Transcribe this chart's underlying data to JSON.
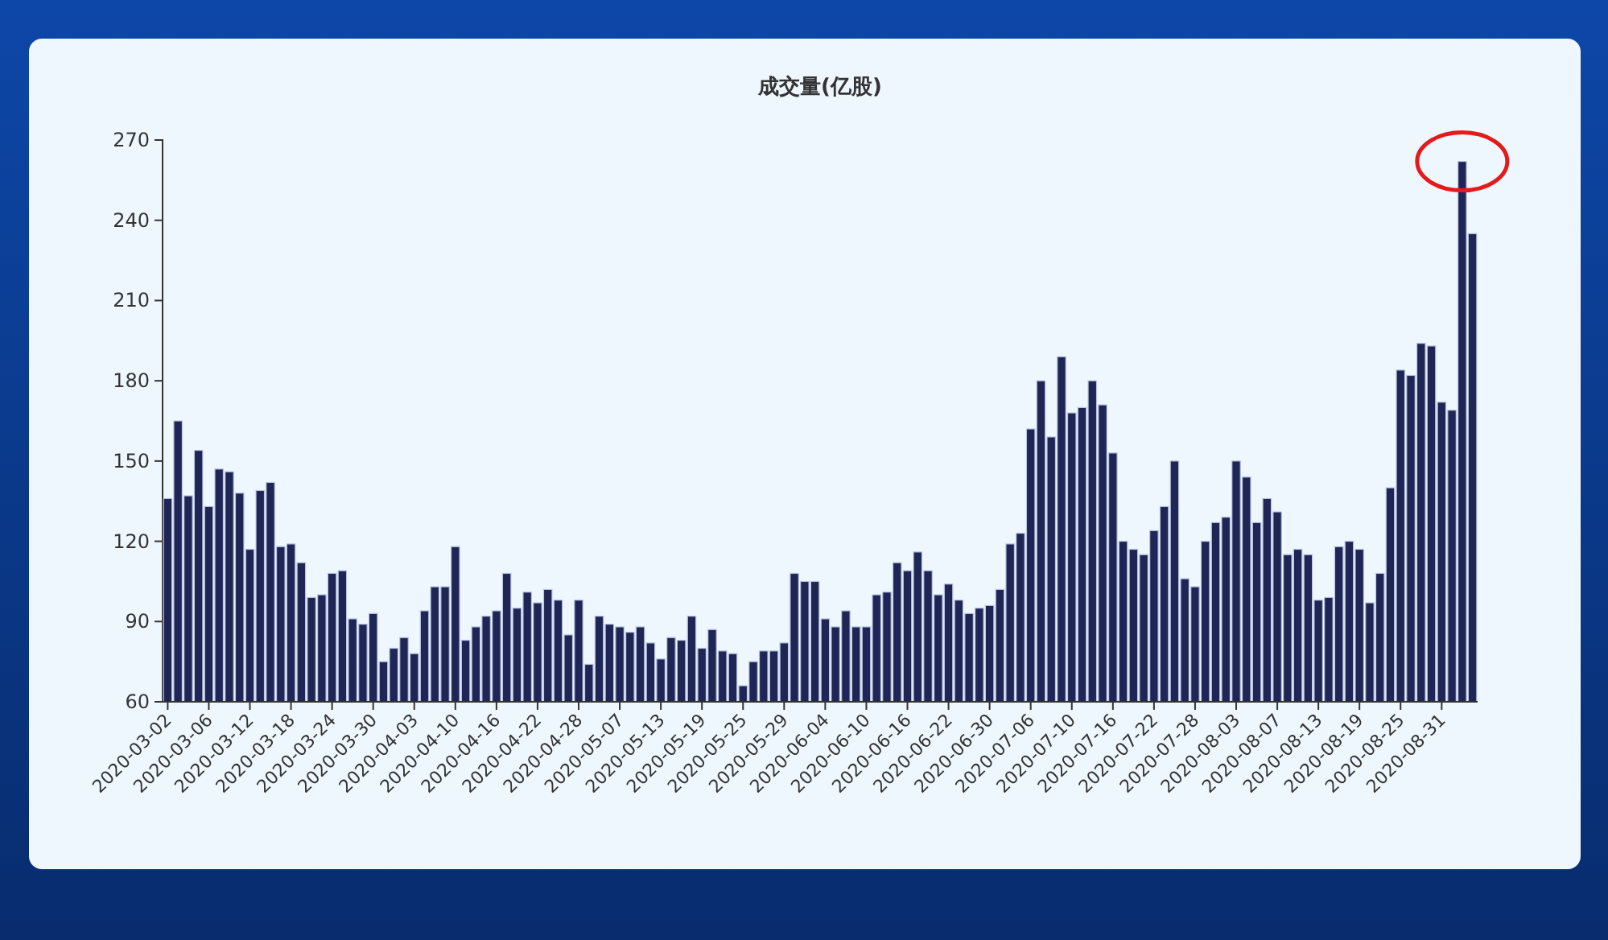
{
  "chart_data": {
    "type": "bar",
    "title": "成交量(亿股)",
    "categories": [
      "2020-03-02",
      null,
      null,
      null,
      "2020-03-06",
      null,
      null,
      null,
      "2020-03-12",
      null,
      null,
      null,
      "2020-03-18",
      null,
      null,
      null,
      "2020-03-24",
      null,
      null,
      null,
      "2020-03-30",
      null,
      null,
      null,
      "2020-04-03",
      null,
      null,
      null,
      "2020-04-10",
      null,
      null,
      null,
      "2020-04-16",
      null,
      null,
      null,
      "2020-04-22",
      null,
      null,
      null,
      "2020-04-28",
      null,
      null,
      null,
      "2020-05-07",
      null,
      null,
      null,
      "2020-05-13",
      null,
      null,
      null,
      "2020-05-19",
      null,
      null,
      null,
      "2020-05-25",
      null,
      null,
      null,
      "2020-05-29",
      null,
      null,
      null,
      "2020-06-04",
      null,
      null,
      null,
      "2020-06-10",
      null,
      null,
      null,
      "2020-06-16",
      null,
      null,
      null,
      "2020-06-22",
      null,
      null,
      null,
      "2020-06-30",
      null,
      null,
      null,
      "2020-07-06",
      null,
      null,
      null,
      "2020-07-10",
      null,
      null,
      null,
      "2020-07-16",
      null,
      null,
      null,
      "2020-07-22",
      null,
      null,
      null,
      "2020-07-28",
      null,
      null,
      null,
      "2020-08-03",
      null,
      null,
      null,
      "2020-08-07",
      null,
      null,
      null,
      "2020-08-13",
      null,
      null,
      null,
      "2020-08-19",
      null,
      null,
      null,
      "2020-08-25",
      null,
      null,
      null,
      "2020-08-31",
      null,
      null,
      null
    ],
    "values": [
      136,
      165,
      137,
      154,
      133,
      147,
      146,
      138,
      117,
      139,
      142,
      118,
      119,
      112,
      99,
      100,
      108,
      109,
      91,
      89,
      93,
      75,
      80,
      84,
      78,
      94,
      103,
      103,
      118,
      83,
      88,
      92,
      94,
      108,
      95,
      101,
      97,
      102,
      98,
      85,
      98,
      74,
      92,
      89,
      88,
      86,
      88,
      82,
      76,
      84,
      83,
      92,
      80,
      87,
      79,
      78,
      66,
      75,
      79,
      79,
      82,
      108,
      105,
      105,
      91,
      88,
      94,
      88,
      88,
      100,
      101,
      112,
      109,
      116,
      109,
      100,
      104,
      98,
      93,
      95,
      96,
      102,
      119,
      123,
      162,
      180,
      159,
      189,
      168,
      170,
      180,
      171,
      153,
      120,
      117,
      115,
      124,
      133,
      150,
      106,
      103,
      120,
      127,
      129,
      150,
      144,
      127,
      136,
      131,
      115,
      117,
      115,
      98,
      99,
      118,
      120,
      117,
      97,
      108,
      140,
      184,
      182,
      194,
      193,
      172,
      169,
      262,
      235
    ],
    "color": "#1f2656",
    "ylim": [
      60,
      270
    ],
    "yticks": [
      60,
      90,
      120,
      150,
      180,
      210,
      240,
      270
    ]
  }
}
